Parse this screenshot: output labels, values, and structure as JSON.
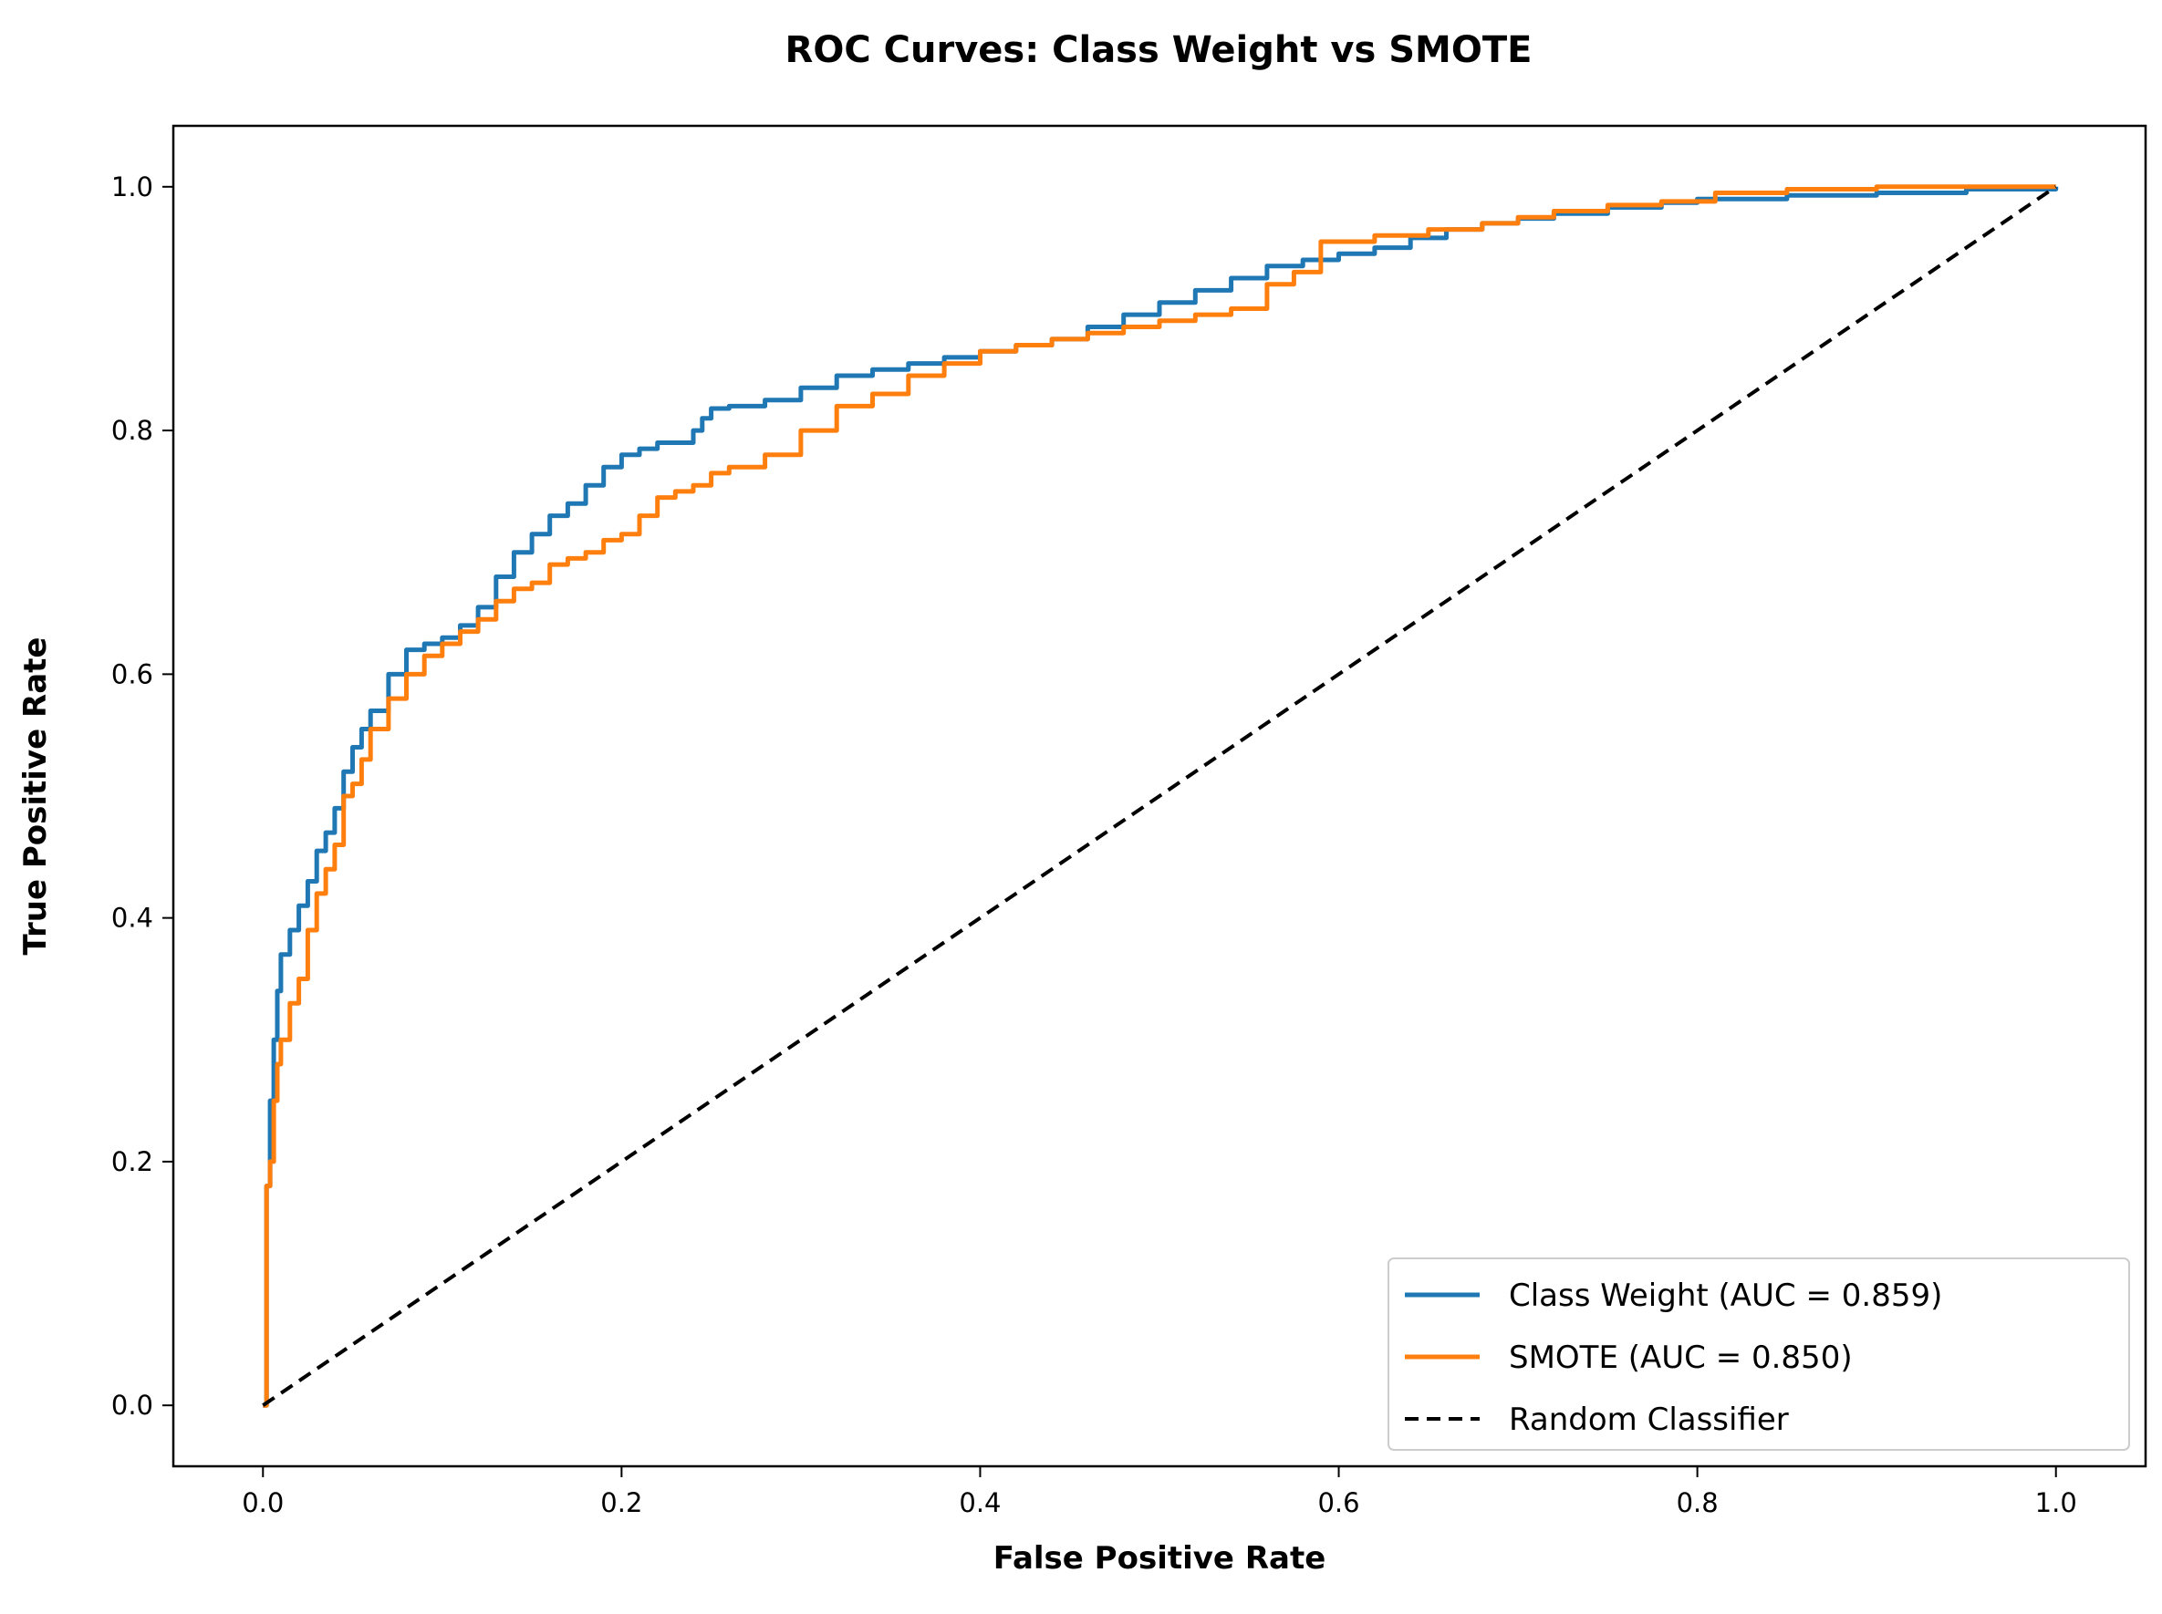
{
  "chart_data": {
    "type": "line",
    "title": "ROC Curves: Class Weight vs SMOTE",
    "xlabel": "False Positive Rate",
    "ylabel": "True Positive Rate",
    "xlim": [
      -0.05,
      1.05
    ],
    "ylim": [
      -0.05,
      1.05
    ],
    "x_ticks": [
      0.0,
      0.2,
      0.4,
      0.6,
      0.8,
      1.0
    ],
    "x_tick_labels": [
      "0.0",
      "0.2",
      "0.4",
      "0.6",
      "0.8",
      "1.0"
    ],
    "y_ticks": [
      0.0,
      0.2,
      0.4,
      0.6,
      0.8,
      1.0
    ],
    "y_tick_labels": [
      "0.0",
      "0.2",
      "0.4",
      "0.6",
      "0.8",
      "1.0"
    ],
    "grid": false,
    "legend_position": "lower-right",
    "series": [
      {
        "name": "Class Weight (AUC = 0.859)",
        "color": "#1f77b4",
        "style": "solid",
        "x": [
          0.0,
          0.002,
          0.004,
          0.006,
          0.008,
          0.01,
          0.015,
          0.02,
          0.025,
          0.03,
          0.035,
          0.04,
          0.045,
          0.05,
          0.055,
          0.06,
          0.07,
          0.08,
          0.09,
          0.1,
          0.11,
          0.12,
          0.13,
          0.14,
          0.15,
          0.16,
          0.17,
          0.18,
          0.19,
          0.2,
          0.21,
          0.22,
          0.23,
          0.24,
          0.245,
          0.25,
          0.26,
          0.28,
          0.3,
          0.32,
          0.34,
          0.36,
          0.38,
          0.4,
          0.42,
          0.44,
          0.46,
          0.48,
          0.5,
          0.52,
          0.54,
          0.56,
          0.58,
          0.6,
          0.62,
          0.64,
          0.66,
          0.68,
          0.7,
          0.72,
          0.75,
          0.78,
          0.8,
          0.85,
          0.9,
          0.95,
          1.0
        ],
        "y": [
          0.0,
          0.18,
          0.25,
          0.3,
          0.34,
          0.37,
          0.39,
          0.41,
          0.43,
          0.455,
          0.47,
          0.49,
          0.52,
          0.54,
          0.555,
          0.57,
          0.6,
          0.62,
          0.625,
          0.63,
          0.64,
          0.655,
          0.68,
          0.7,
          0.715,
          0.73,
          0.74,
          0.755,
          0.77,
          0.78,
          0.785,
          0.79,
          0.79,
          0.8,
          0.81,
          0.818,
          0.82,
          0.825,
          0.835,
          0.845,
          0.85,
          0.855,
          0.86,
          0.865,
          0.87,
          0.875,
          0.885,
          0.895,
          0.905,
          0.915,
          0.925,
          0.935,
          0.94,
          0.945,
          0.95,
          0.958,
          0.965,
          0.97,
          0.974,
          0.978,
          0.983,
          0.987,
          0.99,
          0.993,
          0.995,
          0.998,
          1.0
        ]
      },
      {
        "name": "SMOTE (AUC = 0.850)",
        "color": "#ff7f0e",
        "style": "solid",
        "x": [
          0.0,
          0.002,
          0.004,
          0.006,
          0.008,
          0.01,
          0.015,
          0.02,
          0.025,
          0.03,
          0.035,
          0.04,
          0.045,
          0.05,
          0.055,
          0.06,
          0.07,
          0.08,
          0.09,
          0.1,
          0.11,
          0.12,
          0.13,
          0.14,
          0.15,
          0.16,
          0.17,
          0.18,
          0.19,
          0.2,
          0.21,
          0.22,
          0.23,
          0.24,
          0.25,
          0.26,
          0.27,
          0.28,
          0.3,
          0.32,
          0.34,
          0.36,
          0.38,
          0.4,
          0.42,
          0.44,
          0.46,
          0.48,
          0.5,
          0.52,
          0.54,
          0.56,
          0.575,
          0.59,
          0.62,
          0.65,
          0.68,
          0.7,
          0.72,
          0.75,
          0.78,
          0.81,
          0.85,
          0.9,
          0.95,
          1.0
        ],
        "y": [
          0.0,
          0.18,
          0.2,
          0.25,
          0.28,
          0.3,
          0.33,
          0.35,
          0.39,
          0.42,
          0.44,
          0.46,
          0.5,
          0.51,
          0.53,
          0.555,
          0.58,
          0.6,
          0.615,
          0.625,
          0.635,
          0.645,
          0.66,
          0.67,
          0.675,
          0.69,
          0.695,
          0.7,
          0.71,
          0.715,
          0.73,
          0.745,
          0.75,
          0.755,
          0.765,
          0.77,
          0.77,
          0.78,
          0.8,
          0.82,
          0.83,
          0.845,
          0.855,
          0.865,
          0.87,
          0.875,
          0.88,
          0.885,
          0.89,
          0.895,
          0.9,
          0.92,
          0.93,
          0.955,
          0.96,
          0.965,
          0.97,
          0.975,
          0.98,
          0.985,
          0.988,
          0.995,
          0.998,
          1.0,
          1.0,
          1.0
        ]
      },
      {
        "name": "Random Classifier",
        "color": "#000000",
        "style": "dashed",
        "x": [
          0.0,
          1.0
        ],
        "y": [
          0.0,
          1.0
        ]
      }
    ]
  }
}
